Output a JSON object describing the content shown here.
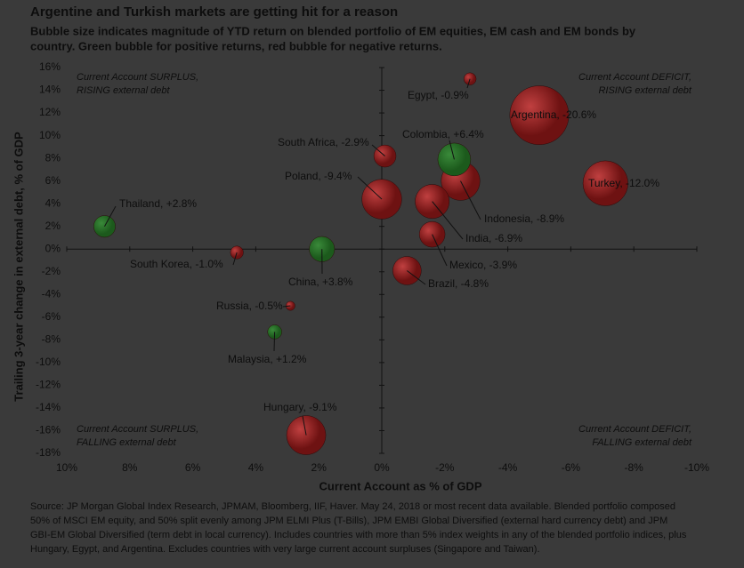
{
  "chart_data": {
    "type": "bubble",
    "title": "Argentine and Turkish markets are getting hit for a reason",
    "subtitle": [
      "Bubble size indicates magnitude of YTD return on blended portfolio of EM equities, EM cash and EM bonds by",
      "country. Green bubble for positive returns, red bubble for negative returns."
    ],
    "x_label": "Current Account as % of GDP",
    "y_label": "Trailing 3-year change in external debt, % of GDP",
    "labels": [
      "Argentina, -20.6%",
      "Turkey, -12.0%",
      "Hungary, -9.1%",
      "Poland, -9.4%",
      "Indonesia, -8.9%",
      "India, -6.9%",
      "Colombia, +6.4%",
      "Brazil, -4.8%",
      "Mexico, -3.9%",
      "China, +3.8%",
      "South Africa, -2.9%",
      "Thailand, +2.8%",
      "Malaysia, +1.2%",
      "South Korea, -1.0%",
      "Egypt, -0.9%",
      "Russia, -0.5%"
    ],
    "x": [
      -5.0,
      -7.1,
      2.4,
      0.0,
      -2.5,
      -1.6,
      -2.3,
      -0.8,
      -1.6,
      1.9,
      -0.1,
      8.8,
      3.4,
      4.6,
      -2.8,
      2.9
    ],
    "y": [
      11.8,
      5.8,
      -16.4,
      4.4,
      6.0,
      4.2,
      7.9,
      -1.9,
      1.3,
      0.0,
      8.2,
      2.0,
      -7.3,
      -0.3,
      15.0,
      -5.0
    ],
    "returns": [
      -20.6,
      -12.0,
      -9.1,
      -9.4,
      -8.9,
      -6.9,
      6.4,
      -4.8,
      -3.9,
      3.8,
      -2.9,
      2.8,
      1.2,
      -1.0,
      -0.9,
      -0.5
    ],
    "positive_color": "#1c5a1c",
    "negative_color": "#6e1212",
    "xlim": [
      10,
      -10
    ],
    "ylim": [
      -18,
      16
    ],
    "xticks": [
      {
        "value": 10,
        "label": "10%"
      },
      {
        "value": 8,
        "label": "8%"
      },
      {
        "value": 6,
        "label": "6%"
      },
      {
        "value": 4,
        "label": "4%"
      },
      {
        "value": 2,
        "label": "2%"
      },
      {
        "value": 0,
        "label": "0%"
      },
      {
        "value": -2,
        "label": "-2%"
      },
      {
        "value": -4,
        "label": "-4%"
      },
      {
        "value": -6,
        "label": "-6%"
      },
      {
        "value": -8,
        "label": "-8%"
      },
      {
        "value": -10,
        "label": "-10%"
      }
    ],
    "yticks": [
      {
        "value": 16,
        "label": "16%"
      },
      {
        "value": 14,
        "label": "14%"
      },
      {
        "value": 12,
        "label": "12%"
      },
      {
        "value": 10,
        "label": "10%"
      },
      {
        "value": 8,
        "label": "8%"
      },
      {
        "value": 6,
        "label": "6%"
      },
      {
        "value": 4,
        "label": "4%"
      },
      {
        "value": 2,
        "label": "2%"
      },
      {
        "value": 0,
        "label": "0%"
      },
      {
        "value": -2,
        "label": "-2%"
      },
      {
        "value": -4,
        "label": "-4%"
      },
      {
        "value": -6,
        "label": "-6%"
      },
      {
        "value": -8,
        "label": "-8%"
      },
      {
        "value": -10,
        "label": "-10%"
      },
      {
        "value": -12,
        "label": "-12%"
      },
      {
        "value": -14,
        "label": "-14%"
      },
      {
        "value": -16,
        "label": "-16%"
      },
      {
        "value": -18,
        "label": "-18%"
      }
    ],
    "quadrant_labels": {
      "top_left": [
        "Current Account SURPLUS,",
        "RISING external debt"
      ],
      "top_right": [
        "Current Account DEFICIT,",
        "RISING external debt"
      ],
      "bottom_left": [
        "Current Account SURPLUS,",
        "FALLING external debt"
      ],
      "bottom_right": [
        "Current Account DEFICIT,",
        "FALLING external debt"
      ]
    },
    "source": [
      "Source: JP Morgan Global Index Research, JPMAM, Bloomberg, IIF, Haver. May 24, 2018 or most recent data available. Blended portfolio composed",
      "50% of MSCI EM equity, and 50% split evenly among JPM ELMI Plus (T-Bills), JPM EMBI Global Diversified (external hard currency debt) and JPM",
      "GBI-EM Global Diversified (term debt in local currency). Includes countries with more than 5% index weights in any of the blended portfolio indices, plus",
      "Hungary, Egypt, and Argentina. Excludes countries with very large current account surpluses (Singapore and Taiwan)."
    ]
  }
}
